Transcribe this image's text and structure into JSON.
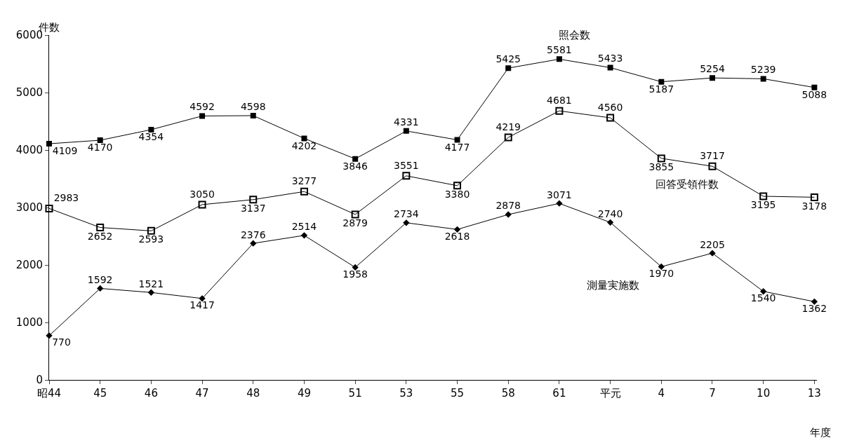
{
  "chart_data": {
    "type": "line",
    "ylabel": "件数",
    "xlabel": "年度",
    "categories": [
      "昭44",
      "45",
      "46",
      "47",
      "48",
      "49",
      "51",
      "53",
      "55",
      "58",
      "61",
      "平元",
      "4",
      "7",
      "10",
      "13"
    ],
    "series": [
      {
        "name": "照会数",
        "color": "#000000",
        "marker": "square",
        "values": [
          4109,
          4170,
          4354,
          4592,
          4598,
          4202,
          3846,
          4331,
          4177,
          5425,
          5581,
          5433,
          5187,
          5254,
          5239,
          5088
        ]
      },
      {
        "name": "回答受領件数",
        "color": "#000000",
        "marker": "square-open",
        "values": [
          2983,
          2652,
          2593,
          3050,
          3137,
          3277,
          2879,
          3551,
          3380,
          4219,
          4681,
          4560,
          3855,
          3717,
          3195,
          3178
        ]
      },
      {
        "name": "測量実施数",
        "color": "#000000",
        "marker": "diamond",
        "values": [
          770,
          1592,
          1521,
          1417,
          2376,
          2514,
          1958,
          2734,
          2618,
          2878,
          3071,
          2740,
          1970,
          2205,
          1540,
          1362
        ]
      }
    ],
    "ylim": [
      0,
      6000
    ],
    "yticks": [
      0,
      1000,
      2000,
      3000,
      4000,
      5000,
      6000
    ],
    "data_labels": true,
    "grid": false,
    "legend": false,
    "line_style": "solid"
  }
}
